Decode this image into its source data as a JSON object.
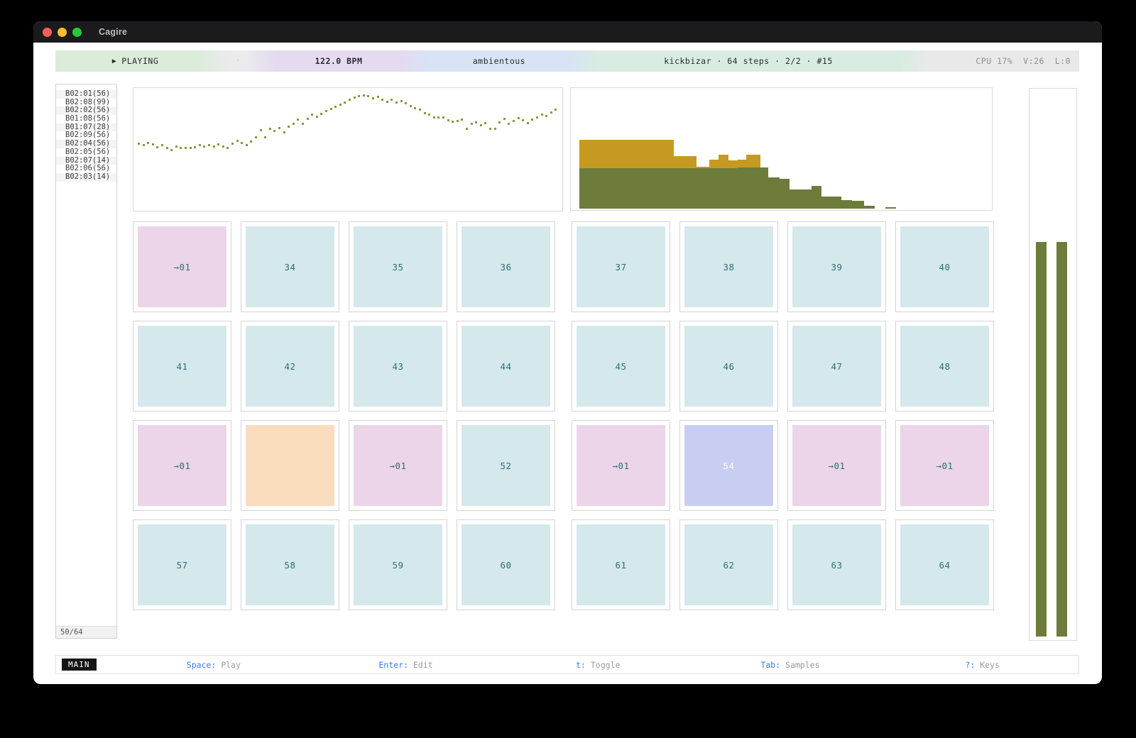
{
  "window": {
    "title": "Cagire"
  },
  "statusbar": {
    "play_icon": "▶",
    "play_state": "PLAYING",
    "divider_dot": "·",
    "bpm": "122.0 BPM",
    "mode": "ambientous",
    "pattern_info": "kickbizar · 64 steps · 2/2 · #15",
    "cpu": "CPU 17%  V:26  L:0"
  },
  "sidebar": {
    "items": [
      "B02:01(56)",
      "B02:08(99)",
      "B02:02(56)",
      "B01:08(56)",
      "B01:07(28)",
      "B02:09(56)",
      "B02:04(56)",
      "B02:05(56)",
      "B02:07(14)",
      "B02:06(56)",
      "B02:03(14)"
    ],
    "footer": "50/64"
  },
  "colors": {
    "accent_blue": "#3478f6",
    "olive": "#6d7c3b",
    "gold": "#c69a20",
    "dot_olive": "#8f9342",
    "pads": {
      "blue": "#d5e8ec",
      "pink": "#ecd5e9",
      "orange": "#f9dcbd",
      "lavender": "#c8cef1"
    },
    "pad_text": {
      "blue": "#2c7176",
      "pink": "#2c7176",
      "orange": "#f9dcbd",
      "lavender": "#ffffff"
    },
    "status_segments": {
      "playing": "#dcecdb",
      "gap": "#ebebed",
      "bpm": "#e5daf0",
      "mode": "#d8e3f6",
      "info": "#d8ece2",
      "cpu": "#e9e9ea"
    }
  },
  "grid": {
    "cells": [
      {
        "label": "→01",
        "type": "pink"
      },
      {
        "label": "34",
        "type": "blue"
      },
      {
        "label": "35",
        "type": "blue"
      },
      {
        "label": "36",
        "type": "blue"
      },
      {
        "label": "37",
        "type": "blue"
      },
      {
        "label": "38",
        "type": "blue"
      },
      {
        "label": "39",
        "type": "blue"
      },
      {
        "label": "40",
        "type": "blue"
      },
      {
        "label": "41",
        "type": "blue"
      },
      {
        "label": "42",
        "type": "blue"
      },
      {
        "label": "43",
        "type": "blue"
      },
      {
        "label": "44",
        "type": "blue"
      },
      {
        "label": "45",
        "type": "blue"
      },
      {
        "label": "46",
        "type": "blue"
      },
      {
        "label": "47",
        "type": "blue"
      },
      {
        "label": "48",
        "type": "blue"
      },
      {
        "label": "→01",
        "type": "pink"
      },
      {
        "label": "",
        "type": "orange"
      },
      {
        "label": "→01",
        "type": "pink"
      },
      {
        "label": "52",
        "type": "blue"
      },
      {
        "label": "→01",
        "type": "pink"
      },
      {
        "label": "54",
        "type": "lavender"
      },
      {
        "label": "→01",
        "type": "pink"
      },
      {
        "label": "→01",
        "type": "pink"
      },
      {
        "label": "57",
        "type": "blue"
      },
      {
        "label": "58",
        "type": "blue"
      },
      {
        "label": "59",
        "type": "blue"
      },
      {
        "label": "60",
        "type": "blue"
      },
      {
        "label": "61",
        "type": "blue"
      },
      {
        "label": "62",
        "type": "blue"
      },
      {
        "label": "63",
        "type": "blue"
      },
      {
        "label": "64",
        "type": "blue"
      }
    ]
  },
  "bottombar": {
    "mode_badge": "MAIN",
    "shortcuts": [
      {
        "key": "Space:",
        "action": " Play"
      },
      {
        "key": "Enter:",
        "action": " Edit"
      },
      {
        "key": "t:",
        "action": " Toggle"
      },
      {
        "key": "Tab:",
        "action": " Samples"
      },
      {
        "key": "?:",
        "action": " Keys"
      }
    ]
  },
  "chart_data": [
    {
      "id": "pitch-dot-curve",
      "type": "scatter",
      "title": "",
      "xlabel": "",
      "ylabel": "",
      "axis_visible": false,
      "color": "#8f9342",
      "note": "x,y as fractions of panel; y measured from top",
      "points": [
        [
          0.01,
          0.45
        ],
        [
          0.021,
          0.462
        ],
        [
          0.032,
          0.444
        ],
        [
          0.043,
          0.458
        ],
        [
          0.054,
          0.478
        ],
        [
          0.065,
          0.462
        ],
        [
          0.076,
          0.488
        ],
        [
          0.087,
          0.503
        ],
        [
          0.098,
          0.474
        ],
        [
          0.109,
          0.488
        ],
        [
          0.12,
          0.488
        ],
        [
          0.131,
          0.486
        ],
        [
          0.142,
          0.478
        ],
        [
          0.153,
          0.464
        ],
        [
          0.164,
          0.474
        ],
        [
          0.175,
          0.464
        ],
        [
          0.186,
          0.476
        ],
        [
          0.197,
          0.456
        ],
        [
          0.208,
          0.476
        ],
        [
          0.219,
          0.486
        ],
        [
          0.23,
          0.452
        ],
        [
          0.241,
          0.426
        ],
        [
          0.252,
          0.446
        ],
        [
          0.263,
          0.464
        ],
        [
          0.274,
          0.43
        ],
        [
          0.285,
          0.4
        ],
        [
          0.296,
          0.34
        ],
        [
          0.307,
          0.398
        ],
        [
          0.318,
          0.33
        ],
        [
          0.329,
          0.344
        ],
        [
          0.34,
          0.324
        ],
        [
          0.351,
          0.358
        ],
        [
          0.362,
          0.308
        ],
        [
          0.373,
          0.284
        ],
        [
          0.384,
          0.254
        ],
        [
          0.395,
          0.284
        ],
        [
          0.406,
          0.248
        ],
        [
          0.417,
          0.21
        ],
        [
          0.428,
          0.23
        ],
        [
          0.439,
          0.204
        ],
        [
          0.45,
          0.184
        ],
        [
          0.461,
          0.164
        ],
        [
          0.472,
          0.148
        ],
        [
          0.483,
          0.128
        ],
        [
          0.494,
          0.112
        ],
        [
          0.505,
          0.088
        ],
        [
          0.516,
          0.068
        ],
        [
          0.527,
          0.058
        ],
        [
          0.538,
          0.05
        ],
        [
          0.549,
          0.058
        ],
        [
          0.56,
          0.074
        ],
        [
          0.571,
          0.064
        ],
        [
          0.582,
          0.088
        ],
        [
          0.593,
          0.104
        ],
        [
          0.604,
          0.088
        ],
        [
          0.615,
          0.112
        ],
        [
          0.626,
          0.098
        ],
        [
          0.637,
          0.118
        ],
        [
          0.648,
          0.142
        ],
        [
          0.659,
          0.158
        ],
        [
          0.67,
          0.172
        ],
        [
          0.681,
          0.198
        ],
        [
          0.692,
          0.212
        ],
        [
          0.703,
          0.232
        ],
        [
          0.714,
          0.232
        ],
        [
          0.725,
          0.232
        ],
        [
          0.736,
          0.258
        ],
        [
          0.747,
          0.268
        ],
        [
          0.758,
          0.262
        ],
        [
          0.769,
          0.252
        ],
        [
          0.78,
          0.328
        ],
        [
          0.791,
          0.288
        ],
        [
          0.802,
          0.272
        ],
        [
          0.813,
          0.298
        ],
        [
          0.824,
          0.278
        ],
        [
          0.835,
          0.328
        ],
        [
          0.846,
          0.326
        ],
        [
          0.857,
          0.272
        ],
        [
          0.868,
          0.248
        ],
        [
          0.879,
          0.288
        ],
        [
          0.89,
          0.262
        ],
        [
          0.901,
          0.242
        ],
        [
          0.912,
          0.258
        ],
        [
          0.923,
          0.278
        ],
        [
          0.934,
          0.252
        ],
        [
          0.945,
          0.232
        ],
        [
          0.956,
          0.212
        ],
        [
          0.967,
          0.222
        ],
        [
          0.978,
          0.192
        ],
        [
          0.988,
          0.172
        ]
      ]
    },
    {
      "id": "sample-length-histogram",
      "type": "histogram",
      "stacked": true,
      "colors": {
        "bottom": "#6d7c3b",
        "top": "#c69a20"
      },
      "note": "x0/x1 fractions of panel width; green = bottom series height fraction; gold = stacked top extent fraction",
      "segments": [
        {
          "x0": 0.02,
          "x1": 0.244,
          "green": 0.337,
          "gold": 0.574
        },
        {
          "x0": 0.244,
          "x1": 0.298,
          "green": 0.337,
          "gold": 0.438
        },
        {
          "x0": 0.298,
          "x1": 0.329,
          "green": 0.337,
          "gold": 0.35
        },
        {
          "x0": 0.329,
          "x1": 0.351,
          "green": 0.337,
          "gold": 0.408
        },
        {
          "x0": 0.351,
          "x1": 0.375,
          "green": 0.337,
          "gold": 0.45
        },
        {
          "x0": 0.375,
          "x1": 0.397,
          "green": 0.337,
          "gold": 0.402
        },
        {
          "x0": 0.397,
          "x1": 0.417,
          "green": 0.341,
          "gold": 0.408
        },
        {
          "x0": 0.417,
          "x1": 0.451,
          "green": 0.341,
          "gold": 0.45
        },
        {
          "x0": 0.451,
          "x1": 0.469,
          "green": 0.341,
          "gold": 0
        },
        {
          "x0": 0.469,
          "x1": 0.495,
          "green": 0.26,
          "gold": 0
        },
        {
          "x0": 0.495,
          "x1": 0.52,
          "green": 0.249,
          "gold": 0
        },
        {
          "x0": 0.52,
          "x1": 0.571,
          "green": 0.16,
          "gold": 0
        },
        {
          "x0": 0.571,
          "x1": 0.595,
          "green": 0.189,
          "gold": 0
        },
        {
          "x0": 0.595,
          "x1": 0.642,
          "green": 0.101,
          "gold": 0
        },
        {
          "x0": 0.642,
          "x1": 0.668,
          "green": 0.071,
          "gold": 0
        },
        {
          "x0": 0.668,
          "x1": 0.697,
          "green": 0.065,
          "gold": 0
        },
        {
          "x0": 0.697,
          "x1": 0.722,
          "green": 0.024,
          "gold": 0
        },
        {
          "x0": 0.747,
          "x1": 0.773,
          "green": 0.012,
          "gold": 0
        }
      ]
    },
    {
      "id": "level-meters",
      "type": "bar",
      "color": "#6d7c3b",
      "values": [
        0.725,
        0.725
      ],
      "ylim": [
        0,
        1
      ]
    }
  ]
}
